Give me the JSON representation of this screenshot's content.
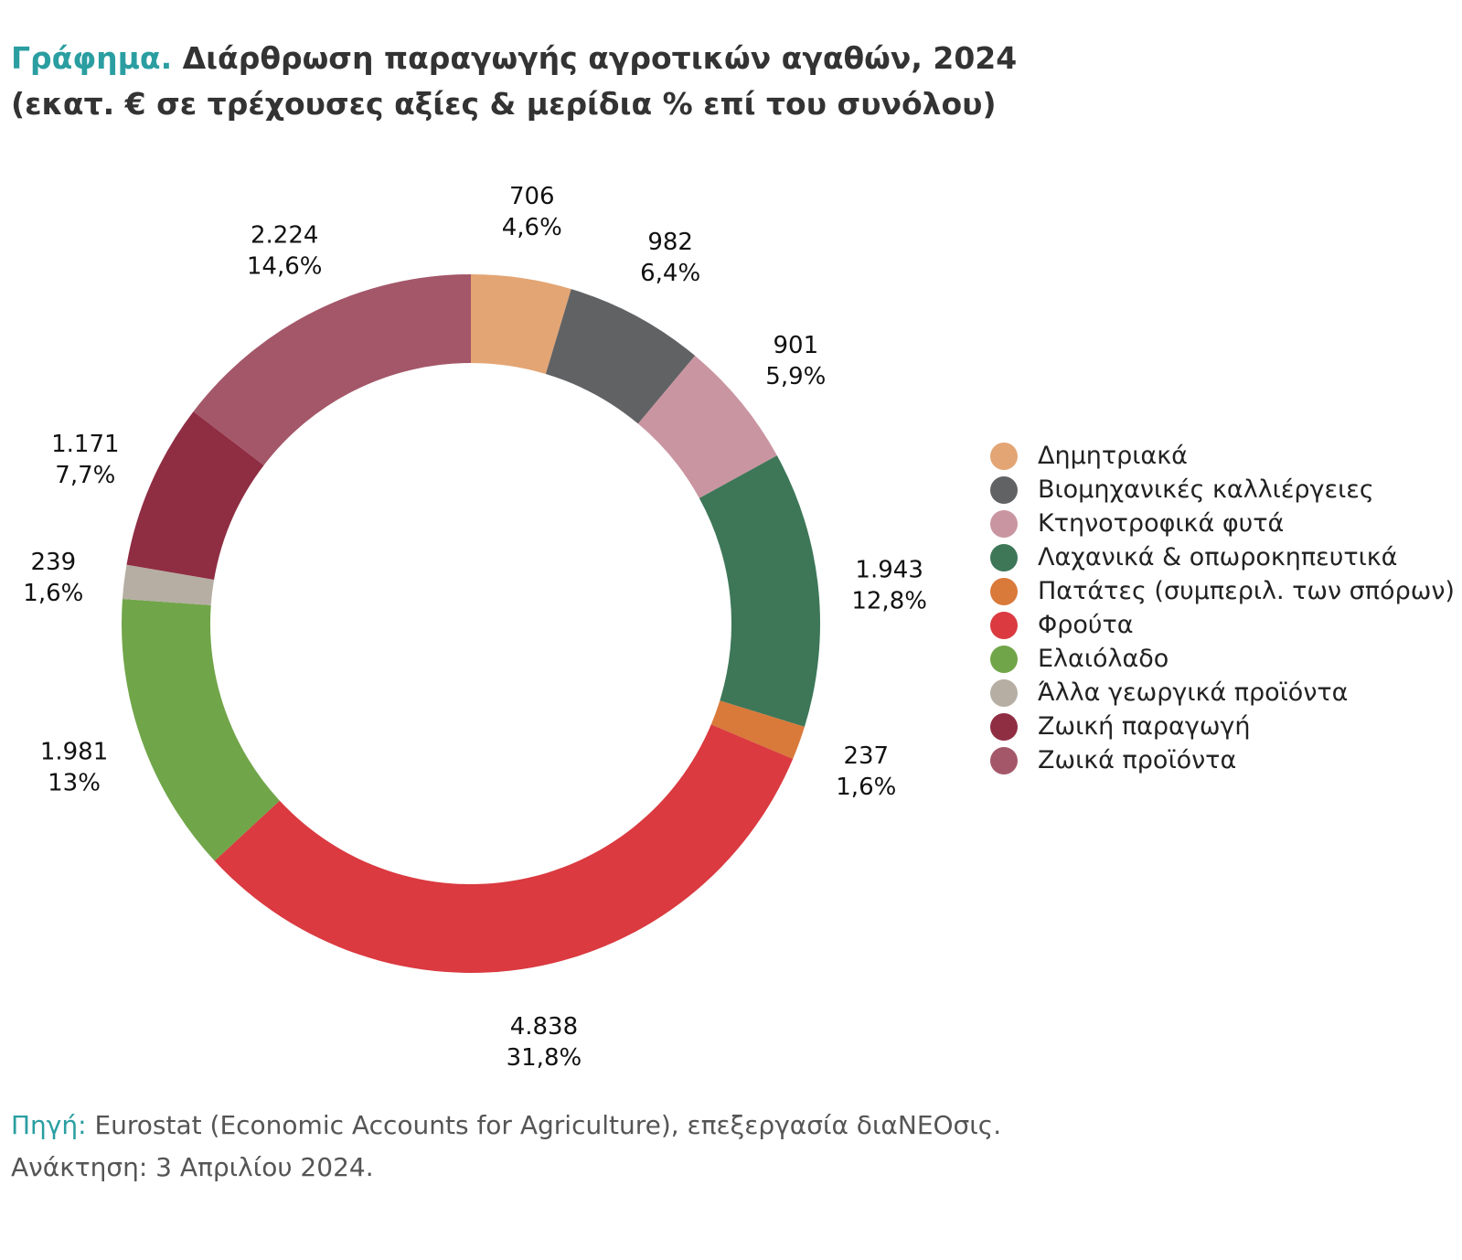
{
  "title": {
    "prefix": "Γράφημα.",
    "text": "Διάρθρωση παραγωγής αγροτικών αγαθών, 2024"
  },
  "subtitle": "(εκατ. € σε τρέχουσες αξίες & μερίδια % επί του συνόλου)",
  "chart_data": {
    "type": "pie",
    "donut": true,
    "legend_position": "right",
    "slices": [
      {
        "name": "Δημητριακά",
        "value": 706,
        "value_label": "706",
        "share_label": "4,6%",
        "color": "#e3a574"
      },
      {
        "name": "Βιομηχανικές καλλιέργειες",
        "value": 982,
        "value_label": "982",
        "share_label": "6,4%",
        "color": "#616264"
      },
      {
        "name": "Κτηνοτροφικά φυτά",
        "value": 901,
        "value_label": "901",
        "share_label": "5,9%",
        "color": "#c995a1"
      },
      {
        "name": "Λαχανικά & οπωροκηπευτικά",
        "value": 1943,
        "value_label": "1.943",
        "share_label": "12,8%",
        "color": "#3d7758"
      },
      {
        "name": "Πατάτες (συμπεριλ. των σπόρων)",
        "value": 237,
        "value_label": "237",
        "share_label": "1,6%",
        "color": "#d9793a"
      },
      {
        "name": "Φρούτα",
        "value": 4838,
        "value_label": "4.838",
        "share_label": "31,8%",
        "color": "#da3a40"
      },
      {
        "name": "Ελαιόλαδο",
        "value": 1981,
        "value_label": "1.981",
        "share_label": "13%",
        "color": "#71a549"
      },
      {
        "name": "Άλλα γεωργικά προϊόντα",
        "value": 239,
        "value_label": "239",
        "share_label": "1,6%",
        "color": "#b6aea3"
      },
      {
        "name": "Ζωική παραγωγή",
        "value": 1171,
        "value_label": "1.171",
        "share_label": "7,7%",
        "color": "#8f2d43"
      },
      {
        "name": "Ζωικά προϊόντα",
        "value": 2224,
        "value_label": "2.224",
        "share_label": "14,6%",
        "color": "#a45769"
      }
    ]
  },
  "source": {
    "prefix": "Πηγή:",
    "text": "Eurostat (Economic Accounts for Agriculture), επεξεργασία διαNEOσις.",
    "retrieved": "Ανάκτηση: 3 Απριλίου 2024."
  }
}
